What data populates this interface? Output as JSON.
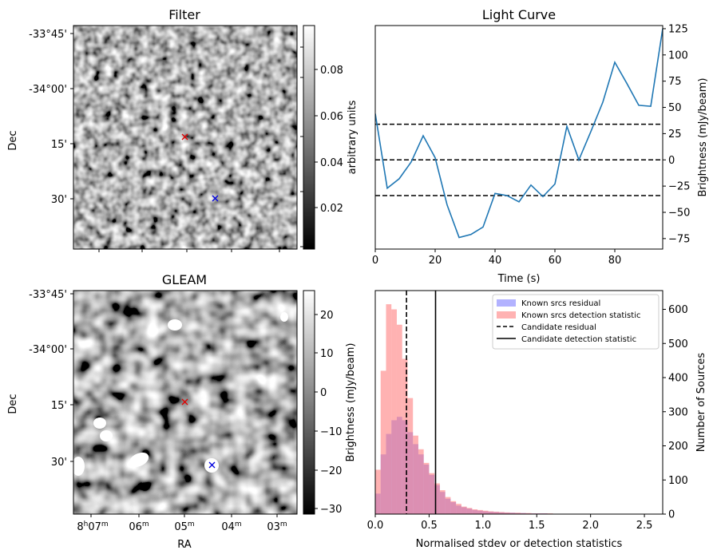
{
  "colors": {
    "line": "#1f77b4",
    "known_residual": "#7373ff",
    "known_detection": "#ff7373",
    "candidate_red": "#e00000",
    "candidate_blue": "#0000dd"
  },
  "filter_panel": {
    "title": "Filter",
    "ylabel": "Dec",
    "dec_ticks": [
      "-33°45'",
      "-34°00'",
      "15'",
      "30'"
    ],
    "colorbar_label": "arbitrary units",
    "colorbar_ticks": [
      "0.08",
      "0.06",
      "0.04",
      "0.02"
    ],
    "markers": [
      "red-cross",
      "blue-cross"
    ]
  },
  "gleam_panel": {
    "title": "GLEAM",
    "ylabel": "Dec",
    "xlabel": "RA",
    "dec_ticks": [
      "-33°45'",
      "-34°00'",
      "15'",
      "30'"
    ],
    "ra_ticks": [
      {
        "main": "8",
        "sup1": "h",
        "main2": "07",
        "sup2": "m"
      },
      {
        "main": "06",
        "sup1": "m"
      },
      {
        "main": "05",
        "sup1": "m"
      },
      {
        "main": "04",
        "sup1": "m"
      },
      {
        "main": "03",
        "sup1": "m"
      }
    ],
    "colorbar_label": "Brightness (mJy/beam)",
    "colorbar_ticks": [
      "20",
      "10",
      "0",
      "−10",
      "−20",
      "−30"
    ]
  },
  "chart_data": [
    {
      "type": "line",
      "title": "Light Curve",
      "xlabel": "Time (s)",
      "ylabel": "Brightness (mJy/beam)",
      "xlim": [
        0,
        96
      ],
      "ylim": [
        -85,
        128
      ],
      "xticks": [
        0,
        20,
        40,
        60,
        80
      ],
      "yticks": [
        -75,
        -50,
        -25,
        0,
        25,
        50,
        75,
        100,
        125
      ],
      "yaxis_side": "right",
      "series": [
        {
          "x": [
            0,
            4,
            8,
            12,
            16,
            20,
            24,
            28,
            32,
            36,
            40,
            44,
            48,
            52,
            56,
            60,
            64,
            68,
            72,
            76,
            80,
            84,
            88,
            92,
            96
          ],
          "y": [
            44,
            -27,
            -18,
            -2,
            23,
            2,
            -43,
            -74,
            -71,
            -64,
            -32,
            -34,
            -40,
            -24,
            -35,
            -23,
            32,
            0,
            27,
            55,
            93,
            73,
            52,
            51,
            125
          ]
        }
      ],
      "hlines": [
        {
          "y": 34,
          "style": "dashed"
        },
        {
          "y": 0,
          "style": "dashed"
        },
        {
          "y": -34,
          "style": "dashed"
        }
      ]
    },
    {
      "type": "histogram",
      "xlabel": "Normalised stdev or detection statistics",
      "ylabel": "Number of Sources",
      "xlim": [
        0,
        2.67
      ],
      "ylim": [
        0,
        655
      ],
      "xticks": [
        "0.0",
        "0.5",
        "1.0",
        "1.5",
        "2.0",
        "2.5"
      ],
      "yticks": [
        0,
        100,
        200,
        300,
        400,
        500,
        600
      ],
      "yaxis_side": "right",
      "bin_width": 0.05,
      "legend_position": "top-right",
      "series": [
        {
          "name": "Known srcs residual",
          "values": [
            60,
            175,
            235,
            275,
            285,
            275,
            240,
            205,
            175,
            145,
            115,
            85,
            65,
            45,
            35,
            25,
            20,
            16,
            12,
            10,
            8,
            7,
            6,
            5,
            4,
            4,
            3,
            3,
            2,
            2,
            2,
            2,
            1,
            1,
            1,
            1,
            1,
            1,
            1,
            1
          ]
        },
        {
          "name": "Known srcs detection statistic",
          "values": [
            130,
            420,
            615,
            600,
            555,
            455,
            340,
            230,
            190,
            150,
            120,
            90,
            70,
            50,
            38,
            30,
            22,
            18,
            14,
            12,
            10,
            8,
            7,
            6,
            5,
            4,
            4,
            3,
            3,
            2,
            2,
            2,
            2,
            1,
            1,
            1,
            1,
            1,
            1,
            1
          ]
        }
      ],
      "vlines": [
        {
          "name": "Candidate residual",
          "x": 0.29,
          "style": "dashed"
        },
        {
          "name": "Candidate detection statistic",
          "x": 0.56,
          "style": "solid"
        }
      ]
    }
  ]
}
